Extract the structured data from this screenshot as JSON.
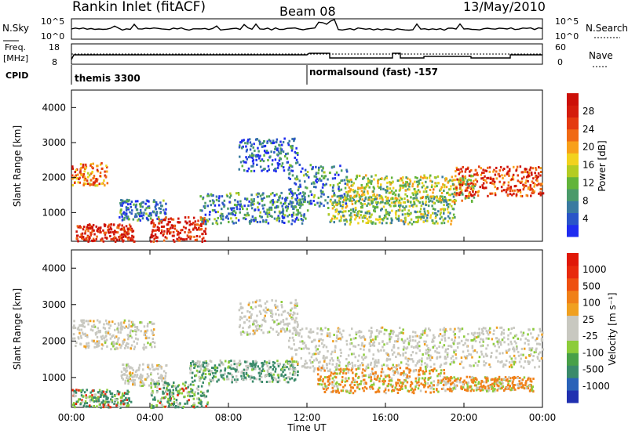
{
  "header": {
    "station": "Rankin Inlet (fitACF)",
    "beam": "Beam 08",
    "date": "13/May/2010"
  },
  "summary": {
    "nsky_label": "N.Sky",
    "nsearch_label": "N.Search",
    "freq_label_line1": "Freq.",
    "freq_label_line2": "[MHz]",
    "nave_label": "Nave",
    "cpid_label": "CPID",
    "left_ticks_top": [
      "10^5",
      "10^0"
    ],
    "right_ticks_top": [
      "10^5",
      "10^0"
    ],
    "left_ticks_freq": [
      "18",
      "8"
    ],
    "right_ticks_nave": [
      "60",
      "0"
    ],
    "cpid_segments": [
      {
        "label": "themis 3300",
        "start": 0.0
      },
      {
        "label": "normalsound (fast) -157",
        "start": 12.0
      }
    ]
  },
  "chart_data": [
    {
      "type": "heatmap",
      "name": "power",
      "ylabel": "Slant Range [km]",
      "xlabel": "",
      "ylim": [
        180,
        4500
      ],
      "xlim": [
        0,
        24
      ],
      "yticks": [
        "1000",
        "2000",
        "3000",
        "4000"
      ],
      "colorbar_label": "Power [dB]",
      "colorbar_ticks": [
        "4",
        "8",
        "12",
        "16",
        "20",
        "24",
        "28"
      ],
      "colorbar_colors": [
        "#1f2cf0",
        "#2a55c8",
        "#3a7aa0",
        "#4a9a6a",
        "#62b43a",
        "#b4cc22",
        "#f2d21e",
        "#f8a01a",
        "#f06a14",
        "#e43a10",
        "#d41c0c",
        "#cc1008"
      ],
      "regions": [
        {
          "t0": 0.0,
          "t1": 1.8,
          "r0": 1800,
          "r1": 2450,
          "level": 0.7
        },
        {
          "t0": 0.2,
          "t1": 3.2,
          "r0": 200,
          "r1": 700,
          "level": 0.9
        },
        {
          "t0": 2.4,
          "t1": 4.8,
          "r0": 800,
          "r1": 1400,
          "level": 0.2
        },
        {
          "t0": 4.0,
          "t1": 6.8,
          "r0": 200,
          "r1": 900,
          "level": 0.9
        },
        {
          "t0": 6.5,
          "t1": 12.0,
          "r0": 700,
          "r1": 1600,
          "level": 0.25
        },
        {
          "t0": 8.5,
          "t1": 11.5,
          "r0": 2200,
          "r1": 3150,
          "level": 0.15
        },
        {
          "t0": 11.0,
          "t1": 14.0,
          "r0": 1200,
          "r1": 2400,
          "level": 0.25
        },
        {
          "t0": 13.0,
          "t1": 19.5,
          "r0": 700,
          "r1": 1500,
          "level": 0.4
        },
        {
          "t0": 14.0,
          "t1": 20.5,
          "r0": 1300,
          "r1": 2100,
          "level": 0.45
        },
        {
          "t0": 19.5,
          "t1": 24.0,
          "r0": 1500,
          "r1": 2350,
          "level": 0.8
        }
      ]
    },
    {
      "type": "heatmap",
      "name": "velocity",
      "ylabel": "Slant Range [km]",
      "xlabel": "Time UT",
      "ylim": [
        180,
        4500
      ],
      "xlim": [
        0,
        24
      ],
      "yticks": [
        "1000",
        "2000",
        "3000",
        "4000"
      ],
      "xticks": [
        "00:00",
        "04:00",
        "08:00",
        "12:00",
        "16:00",
        "20:00",
        "00:00"
      ],
      "colorbar_label": "Velocity [m s⁻¹]",
      "colorbar_ticks": [
        "1000",
        "500",
        "100",
        "25",
        "-25",
        "-100",
        "-500",
        "-1000"
      ],
      "colorbar_colors": [
        "#2030b0",
        "#2a62b8",
        "#3a8a6a",
        "#48a048",
        "#8ccc3a",
        "#c8c8c0",
        "#c8c8c0",
        "#f0a020",
        "#f08018",
        "#ee5010",
        "#e82a0c",
        "#e01808"
      ],
      "regions": [
        {
          "t0": 0.0,
          "t1": 4.2,
          "r0": 1800,
          "r1": 2600,
          "kind": "gray"
        },
        {
          "t0": 0.0,
          "t1": 3.0,
          "r0": 200,
          "r1": 700,
          "kind": "green"
        },
        {
          "t0": 2.5,
          "t1": 4.8,
          "r0": 800,
          "r1": 1400,
          "kind": "gray"
        },
        {
          "t0": 4.0,
          "t1": 7.0,
          "r0": 200,
          "r1": 900,
          "kind": "green"
        },
        {
          "t0": 6.0,
          "t1": 11.5,
          "r0": 900,
          "r1": 1500,
          "kind": "mixed"
        },
        {
          "t0": 8.5,
          "t1": 11.5,
          "r0": 2200,
          "r1": 3150,
          "kind": "gray"
        },
        {
          "t0": 11.0,
          "t1": 14.0,
          "r0": 1200,
          "r1": 2400,
          "kind": "gray"
        },
        {
          "t0": 12.5,
          "t1": 19.0,
          "r0": 600,
          "r1": 1300,
          "kind": "orange"
        },
        {
          "t0": 14.0,
          "t1": 24.0,
          "r0": 1300,
          "r1": 2400,
          "kind": "gray"
        },
        {
          "t0": 19.0,
          "t1": 23.5,
          "r0": 650,
          "r1": 1050,
          "kind": "orange"
        }
      ]
    }
  ]
}
